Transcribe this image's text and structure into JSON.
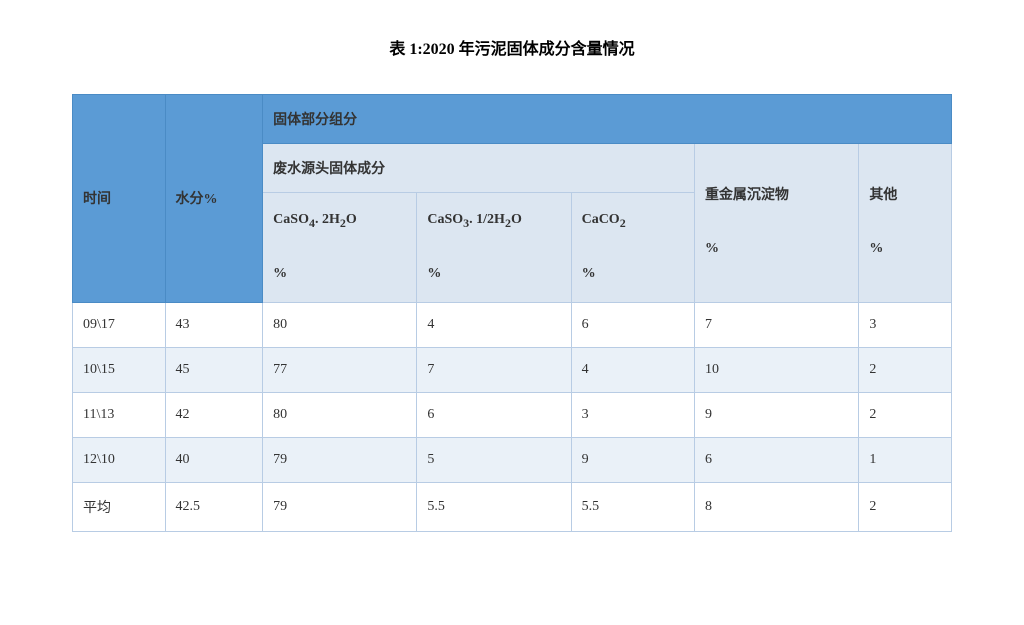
{
  "title": "表 1:2020 年污泥固体成分含量情况",
  "colors": {
    "header_dark_bg": "#5b9bd5",
    "header_light_bg": "#dce6f1",
    "border": "#b8cce4",
    "row_alt_bg": "#eaf1f8",
    "row_bg": "#ffffff",
    "text": "#333333"
  },
  "header": {
    "time": "时间",
    "water": "水分%",
    "solid_group": "固体部分组分",
    "waste_solid": "废水源头固体成分",
    "heavy_metal": "重金属沉淀物",
    "other": "其他",
    "pct": "%",
    "c1_main": "CaSO",
    "c1_sub1": "4",
    "c1_mid": ". 2H",
    "c1_sub2": "2",
    "c1_end": "O",
    "c2_main": "CaSO",
    "c2_sub1": "3",
    "c2_mid": ". 1/2H",
    "c2_sub2": "2",
    "c2_end": "O",
    "c3_main": "CaCO",
    "c3_sub": "2"
  },
  "rows": [
    {
      "time": "09\\17",
      "water": "43",
      "c1": "80",
      "c2": "4",
      "c3": "6",
      "c4": "7",
      "c5": "3"
    },
    {
      "time": "10\\15",
      "water": "45",
      "c1": "77",
      "c2": "7",
      "c3": "4",
      "c4": "10",
      "c5": "2"
    },
    {
      "time": "11\\13",
      "water": "42",
      "c1": "80",
      "c2": "6",
      "c3": "3",
      "c4": "9",
      "c5": "2"
    },
    {
      "time": "12\\10",
      "water": "40",
      "c1": "79",
      "c2": "5",
      "c3": "9",
      "c4": "6",
      "c5": "1"
    },
    {
      "time": "平均",
      "water": "42.5",
      "c1": "79",
      "c2": "5.5",
      "c3": "5.5",
      "c4": "8",
      "c5": "2"
    }
  ]
}
